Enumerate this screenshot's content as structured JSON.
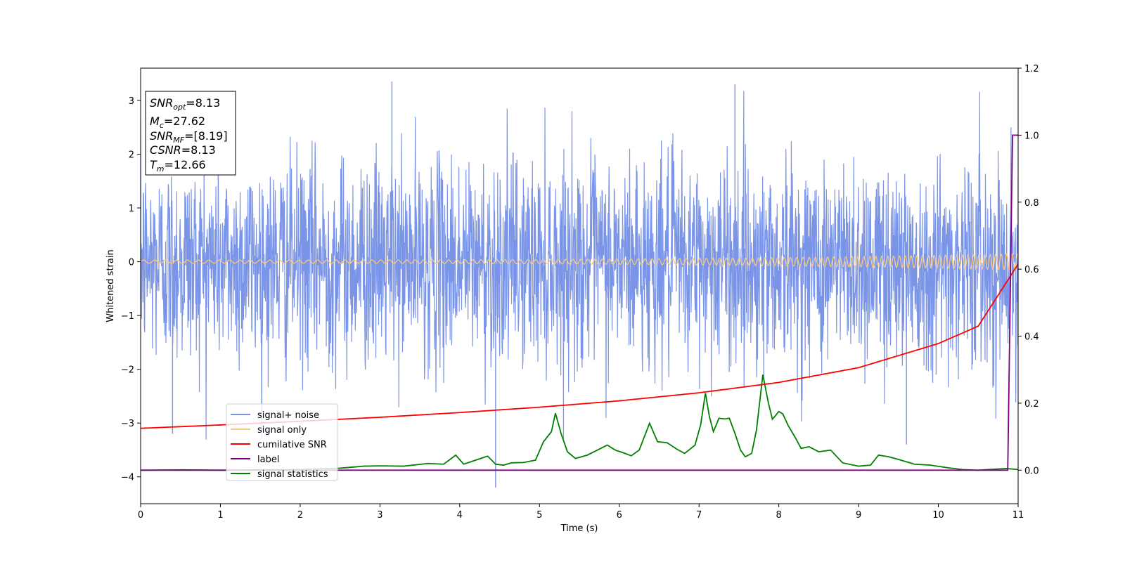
{
  "chart_data": {
    "type": "line",
    "xlabel": "Time (s)",
    "ylabel": "Whitened strain",
    "xlim": [
      0,
      11
    ],
    "ylim": [
      -4.5,
      3.6
    ],
    "ylim_right": [
      -0.1,
      1.2
    ],
    "x_ticks": [
      "0",
      "1",
      "2",
      "3",
      "4",
      "5",
      "6",
      "7",
      "8",
      "9",
      "10",
      "11"
    ],
    "y_ticks": [
      "−4",
      "−3",
      "−2",
      "−1",
      "0",
      "1",
      "2",
      "3"
    ],
    "y_right_ticks": [
      "0.0",
      "0.2",
      "0.4",
      "0.6",
      "0.8",
      "1.0",
      "1.2"
    ],
    "grid": false,
    "legend_position": "lower-left",
    "info_box": {
      "snr_opt": "SNR_opt=8.13",
      "mc": "M_c=27.62",
      "snr_mf": "SNR_MF=[8.19]",
      "csnr": "CSNR=8.13",
      "tm": "T_m=12.66"
    },
    "series": [
      {
        "name": "signal+ noise",
        "axis": "left",
        "color": "#7a94e8",
        "description_values": "noise-dominated whitened strain, roughly within [-2.5, 2.5] with peaks near 3.35 at t≈3.15 and minimum near -4.2 at t≈4.45"
      },
      {
        "name": "signal only",
        "axis": "left",
        "color": "#f7c97e",
        "chirp": {
          "t_end": 11.0,
          "amp_start": 0.03,
          "amp_end": 0.15
        }
      },
      {
        "name": "cumilative SNR",
        "axis": "right",
        "color": "#ff0000",
        "x": [
          0,
          1,
          2,
          3,
          4,
          5,
          6,
          7,
          8,
          9,
          10,
          10.5,
          11
        ],
        "y": [
          0.125,
          0.135,
          0.146,
          0.158,
          0.172,
          0.188,
          0.207,
          0.231,
          0.262,
          0.306,
          0.378,
          0.43,
          0.615
        ]
      },
      {
        "name": "label",
        "axis": "right",
        "color": "#800080",
        "x": [
          0,
          10.87,
          10.9,
          10.93,
          11
        ],
        "y": [
          0,
          0,
          0.5,
          1,
          1
        ]
      },
      {
        "name": "signal statistics",
        "axis": "right",
        "color": "#008000",
        "x": [
          0,
          0.5,
          1,
          1.5,
          2,
          2.5,
          2.8,
          3,
          3.3,
          3.6,
          3.8,
          3.95,
          4.05,
          4.2,
          4.35,
          4.45,
          4.55,
          4.65,
          4.8,
          4.95,
          5.05,
          5.15,
          5.2,
          5.27,
          5.35,
          5.45,
          5.6,
          5.75,
          5.85,
          5.95,
          6.05,
          6.15,
          6.25,
          6.38,
          6.48,
          6.6,
          6.72,
          6.82,
          6.95,
          7.02,
          7.08,
          7.13,
          7.18,
          7.25,
          7.32,
          7.38,
          7.45,
          7.52,
          7.58,
          7.66,
          7.72,
          7.8,
          7.87,
          7.92,
          8.0,
          8.05,
          8.12,
          8.2,
          8.28,
          8.38,
          8.5,
          8.65,
          8.8,
          9.0,
          9.15,
          9.25,
          9.38,
          9.5,
          9.7,
          9.9,
          10.1,
          10.3,
          10.5,
          10.7,
          10.85,
          11
        ],
        "y": [
          0.0,
          0.001,
          0.0,
          0.001,
          0.002,
          0.006,
          0.012,
          0.013,
          0.012,
          0.02,
          0.018,
          0.045,
          0.018,
          0.03,
          0.042,
          0.018,
          0.015,
          0.022,
          0.023,
          0.03,
          0.085,
          0.115,
          0.17,
          0.11,
          0.055,
          0.035,
          0.045,
          0.063,
          0.075,
          0.06,
          0.052,
          0.043,
          0.06,
          0.14,
          0.085,
          0.082,
          0.063,
          0.05,
          0.075,
          0.135,
          0.23,
          0.16,
          0.115,
          0.155,
          0.153,
          0.155,
          0.11,
          0.06,
          0.04,
          0.05,
          0.12,
          0.285,
          0.2,
          0.152,
          0.175,
          0.168,
          0.132,
          0.1,
          0.065,
          0.07,
          0.055,
          0.06,
          0.022,
          0.012,
          0.015,
          0.045,
          0.04,
          0.032,
          0.018,
          0.015,
          0.008,
          0.002,
          0.0,
          0.003,
          0.005,
          0.002
        ]
      }
    ]
  }
}
